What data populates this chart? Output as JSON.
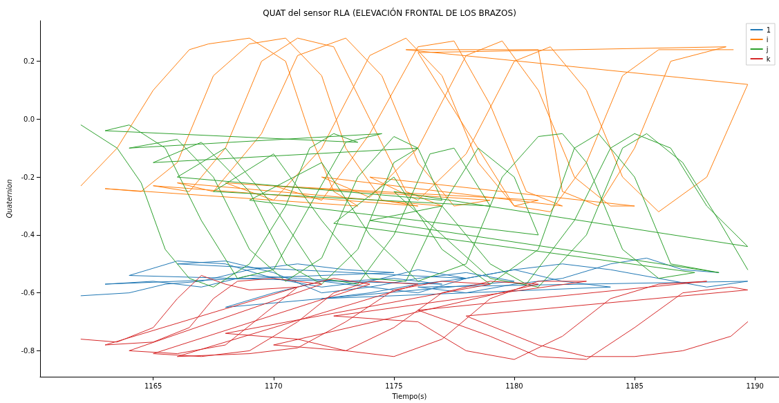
{
  "chart_data": {
    "type": "line",
    "title": "QUAT del sensor RLA (ELEVACIÓN FRONTAL DE LOS BRAZOS)",
    "xlabel": "Tiempo(s)",
    "ylabel": "Quaternion",
    "xlim": [
      1160.3,
      1191
    ],
    "xticks": [
      1165,
      1170,
      1175,
      1180,
      1185,
      1190
    ],
    "ylim": [
      -0.89,
      0.34
    ],
    "yticks": [
      -0.8,
      -0.6,
      -0.4,
      -0.2,
      {
        "value": 0,
        "label": "0.0"
      },
      0.2
    ],
    "grid": false,
    "legend": "top right",
    "series": [
      {
        "name": "1",
        "color": "#1f77b4",
        "x": [
          1162,
          1164,
          1165.5,
          1167,
          1169,
          1171,
          1173,
          1175,
          1163,
          1165,
          1167,
          1169,
          1171,
          1173,
          1175,
          1177,
          1164,
          1166,
          1168,
          1170,
          1172,
          1174,
          1176,
          1178,
          1166,
          1168,
          1170,
          1172,
          1174,
          1176,
          1178,
          1180,
          1168,
          1170,
          1172,
          1174,
          1176,
          1178,
          1180,
          1182,
          1184,
          1172,
          1174,
          1176,
          1178,
          1180,
          1182,
          1184,
          1186,
          1188,
          1189.7,
          1176,
          1178,
          1180,
          1182,
          1184,
          1185.5,
          1187,
          1188.5
        ],
        "values": [
          -0.61,
          -0.6,
          -0.57,
          -0.56,
          -0.52,
          -0.5,
          -0.52,
          -0.53,
          -0.57,
          -0.56,
          -0.58,
          -0.54,
          -0.55,
          -0.56,
          -0.55,
          -0.57,
          -0.54,
          -0.49,
          -0.5,
          -0.55,
          -0.58,
          -0.56,
          -0.52,
          -0.55,
          -0.5,
          -0.49,
          -0.53,
          -0.6,
          -0.58,
          -0.55,
          -0.53,
          -0.56,
          -0.65,
          -0.6,
          -0.56,
          -0.58,
          -0.6,
          -0.55,
          -0.52,
          -0.56,
          -0.58,
          -0.62,
          -0.6,
          -0.57,
          -0.55,
          -0.52,
          -0.5,
          -0.52,
          -0.55,
          -0.58,
          -0.56,
          -0.58,
          -0.6,
          -0.57,
          -0.55,
          -0.5,
          -0.48,
          -0.52,
          -0.53
        ]
      },
      {
        "name": "i",
        "color": "#ff7f0e",
        "x": [
          1162,
          1163.5,
          1165,
          1166.5,
          1167.3,
          1169,
          1170.5,
          1171.5,
          1172.5,
          1173.5,
          1163,
          1164.5,
          1166,
          1167.5,
          1169,
          1170.5,
          1172,
          1173,
          1174.5,
          1176,
          1165,
          1166.5,
          1168,
          1169.5,
          1171,
          1172.5,
          1174,
          1175.5,
          1177,
          1166,
          1167.5,
          1169.5,
          1171,
          1173,
          1174.5,
          1176,
          1177.5,
          1179,
          1168,
          1170,
          1172,
          1174,
          1175.5,
          1177,
          1178.5,
          1180,
          1181,
          1170,
          1172,
          1174,
          1176,
          1177.5,
          1179,
          1180.5,
          1182,
          1172,
          1174,
          1176,
          1178,
          1179.5,
          1181,
          1182.5,
          1184,
          1185,
          1174,
          1176,
          1178,
          1180,
          1181.5,
          1183,
          1184.5,
          1186,
          1188,
          1189.7,
          1175.5,
          1181,
          1182,
          1183.5,
          1185,
          1186.5,
          1188.8,
          1176,
          1180,
          1181.5,
          1183,
          1184.5,
          1186,
          1189.1
        ],
        "values": [
          -0.23,
          -0.1,
          0.1,
          0.24,
          0.26,
          0.28,
          0.2,
          -0.05,
          -0.25,
          -0.3,
          -0.24,
          -0.25,
          -0.15,
          0.15,
          0.26,
          0.28,
          0.15,
          -0.1,
          -0.28,
          -0.3,
          -0.23,
          -0.25,
          -0.1,
          0.2,
          0.28,
          0.25,
          0.0,
          -0.25,
          -0.3,
          -0.22,
          -0.25,
          -0.05,
          0.22,
          0.28,
          0.15,
          -0.15,
          -0.3,
          -0.28,
          -0.22,
          -0.28,
          -0.1,
          0.22,
          0.28,
          0.15,
          -0.15,
          -0.3,
          -0.28,
          -0.23,
          -0.28,
          -0.05,
          0.25,
          0.27,
          0.05,
          -0.25,
          -0.3,
          -0.2,
          -0.27,
          -0.1,
          0.22,
          0.27,
          0.1,
          -0.2,
          -0.3,
          -0.3,
          -0.2,
          -0.28,
          -0.12,
          0.2,
          0.25,
          0.1,
          -0.2,
          -0.32,
          -0.2,
          0.12,
          0.24,
          0.24,
          -0.25,
          -0.3,
          -0.1,
          0.2,
          0.25,
          0.23,
          -0.3,
          -0.32,
          -0.15,
          0.15,
          0.24,
          0.24
        ]
      },
      {
        "name": "j",
        "color": "#2ca02c",
        "x": [
          1162,
          1163.5,
          1164.5,
          1165.5,
          1166.5,
          1167.5,
          1169,
          1170.5,
          1171.5,
          1172.5,
          1173.5,
          1163,
          1164,
          1165.5,
          1167,
          1168.5,
          1170,
          1171.5,
          1173,
          1174.5,
          1164,
          1166,
          1167.5,
          1169,
          1170.5,
          1172,
          1173.5,
          1175,
          1176,
          1165,
          1167,
          1169,
          1170.5,
          1172,
          1173.5,
          1175,
          1176,
          1177,
          1166,
          1168,
          1170,
          1172,
          1173.5,
          1175,
          1176.5,
          1177.5,
          1179,
          1167.5,
          1170,
          1172,
          1174,
          1175.5,
          1177,
          1178.5,
          1180,
          1181,
          1169,
          1172,
          1174,
          1176,
          1178,
          1179.5,
          1181,
          1182,
          1183,
          1184.5,
          1186,
          1187.5,
          1172.5,
          1175,
          1177,
          1179,
          1181,
          1182.5,
          1183.5,
          1185,
          1186.5,
          1188.5,
          1174,
          1177,
          1179,
          1180.5,
          1182.5,
          1184,
          1185,
          1186.5,
          1188,
          1189.7,
          1175,
          1179,
          1181,
          1183,
          1184.5,
          1185.5,
          1187,
          1188.5,
          1189.7
        ],
        "values": [
          -0.02,
          -0.1,
          -0.22,
          -0.45,
          -0.55,
          -0.58,
          -0.5,
          -0.3,
          -0.1,
          -0.05,
          -0.08,
          -0.04,
          -0.02,
          -0.1,
          -0.35,
          -0.55,
          -0.52,
          -0.3,
          -0.08,
          -0.05,
          -0.1,
          -0.07,
          -0.2,
          -0.45,
          -0.56,
          -0.48,
          -0.2,
          -0.06,
          -0.1,
          -0.15,
          -0.08,
          -0.25,
          -0.5,
          -0.57,
          -0.45,
          -0.15,
          -0.1,
          -0.28,
          -0.2,
          -0.1,
          -0.3,
          -0.55,
          -0.57,
          -0.4,
          -0.12,
          -0.1,
          -0.3,
          -0.25,
          -0.12,
          -0.35,
          -0.55,
          -0.56,
          -0.3,
          -0.1,
          -0.2,
          -0.4,
          -0.28,
          -0.15,
          -0.4,
          -0.56,
          -0.5,
          -0.2,
          -0.06,
          -0.05,
          -0.15,
          -0.45,
          -0.55,
          -0.53,
          -0.36,
          -0.2,
          -0.45,
          -0.57,
          -0.45,
          -0.1,
          -0.05,
          -0.2,
          -0.5,
          -0.53,
          -0.35,
          -0.3,
          -0.5,
          -0.57,
          -0.35,
          -0.1,
          -0.05,
          -0.1,
          -0.3,
          -0.44,
          -0.25,
          -0.55,
          -0.58,
          -0.4,
          -0.1,
          -0.05,
          -0.15,
          -0.35,
          -0.52
        ]
      },
      {
        "name": "k",
        "color": "#d62728",
        "x": [
          1162,
          1163.5,
          1165,
          1166,
          1167,
          1168,
          1169,
          1171,
          1163,
          1165,
          1166.5,
          1167.5,
          1168.5,
          1170,
          1172,
          1164,
          1166,
          1168,
          1169.5,
          1171,
          1172.5,
          1174,
          1165,
          1167,
          1169,
          1171,
          1172.5,
          1174,
          1176,
          1166,
          1169,
          1171,
          1173,
          1175,
          1177,
          1179,
          1168,
          1171,
          1173,
          1175,
          1177,
          1179,
          1181,
          1170,
          1173,
          1175,
          1177,
          1179,
          1181,
          1183,
          1172.5,
          1176,
          1178,
          1180,
          1182,
          1184,
          1186,
          1188,
          1176,
          1179,
          1181,
          1183,
          1185,
          1187,
          1189,
          1189.7,
          1178,
          1181,
          1183,
          1185,
          1187,
          1189,
          1189.7
        ],
        "values": [
          -0.76,
          -0.77,
          -0.72,
          -0.62,
          -0.54,
          -0.57,
          -0.59,
          -0.58,
          -0.78,
          -0.77,
          -0.72,
          -0.62,
          -0.56,
          -0.55,
          -0.57,
          -0.8,
          -0.81,
          -0.78,
          -0.68,
          -0.58,
          -0.55,
          -0.57,
          -0.81,
          -0.82,
          -0.8,
          -0.7,
          -0.6,
          -0.56,
          -0.57,
          -0.82,
          -0.81,
          -0.79,
          -0.7,
          -0.59,
          -0.56,
          -0.57,
          -0.74,
          -0.76,
          -0.8,
          -0.72,
          -0.6,
          -0.56,
          -0.57,
          -0.78,
          -0.8,
          -0.82,
          -0.76,
          -0.62,
          -0.56,
          -0.56,
          -0.68,
          -0.7,
          -0.8,
          -0.83,
          -0.75,
          -0.62,
          -0.57,
          -0.56,
          -0.66,
          -0.75,
          -0.82,
          -0.83,
          -0.72,
          -0.6,
          -0.58,
          -0.59,
          -0.68,
          -0.78,
          -0.82,
          -0.82,
          -0.8,
          -0.75,
          -0.7
        ]
      }
    ]
  }
}
